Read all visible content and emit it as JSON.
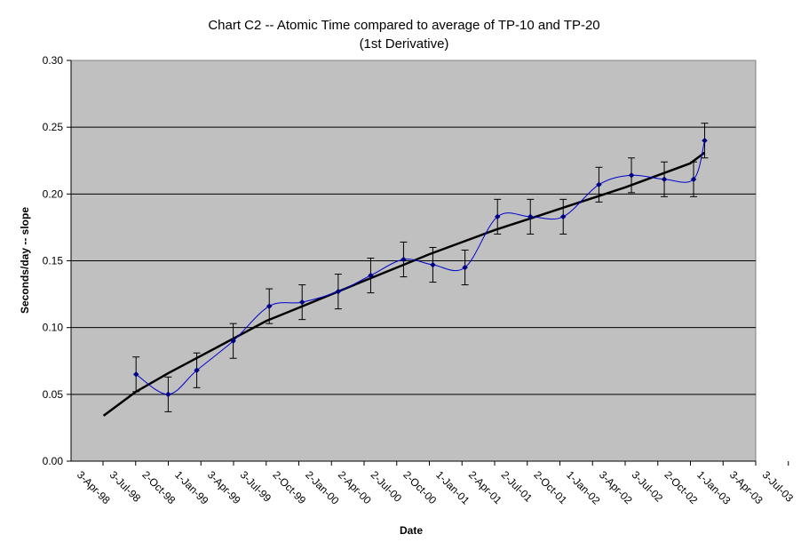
{
  "chart_data": {
    "type": "line",
    "title": "Chart C2 -- Atomic Time compared to average of TP-10 and TP-20",
    "subtitle": "(1st Derivative)",
    "xlabel": "Date",
    "ylabel": "Seconds/day -- slope",
    "ylim": [
      0.0,
      0.3
    ],
    "yticks": [
      "0.00",
      "0.05",
      "0.10",
      "0.15",
      "0.20",
      "0.25",
      "0.30"
    ],
    "xticks": [
      "3-Apr-98",
      "3-Jul-98",
      "2-Oct-98",
      "1-Jan-99",
      "3-Apr-99",
      "3-Jul-99",
      "2-Oct-99",
      "2-Jan-00",
      "2-Apr-00",
      "2-Jul-00",
      "2-Oct-00",
      "1-Jan-01",
      "2-Apr-01",
      "2-Jul-01",
      "2-Oct-01",
      "1-Jan-02",
      "3-Apr-02",
      "3-Jul-02",
      "2-Oct-02",
      "1-Jan-03",
      "3-Apr-03",
      "3-Jul-03"
    ],
    "xlim": [
      "1998-04-03",
      "2003-07-03"
    ],
    "grid": true,
    "legend": "none",
    "colors": {
      "plot_bg": "#c0c0c0",
      "data_line": "#0000cc",
      "marker": "#000080",
      "trend": "#000000",
      "error_bar": "#000000"
    },
    "series": [
      {
        "values": [
          {
            "x": "1998-10-02",
            "y": 0.065,
            "err": 0.013
          },
          {
            "x": "1998-12-31",
            "y": 0.05,
            "err": 0.013
          },
          {
            "x": "1999-03-21",
            "y": 0.068,
            "err": 0.013
          },
          {
            "x": "1999-07-01",
            "y": 0.09,
            "err": 0.013
          },
          {
            "x": "1999-10-10",
            "y": 0.116,
            "err": 0.013
          },
          {
            "x": "2000-01-10",
            "y": 0.119,
            "err": 0.013
          },
          {
            "x": "2000-04-20",
            "y": 0.127,
            "err": 0.013
          },
          {
            "x": "2000-07-20",
            "y": 0.139,
            "err": 0.013
          },
          {
            "x": "2000-10-20",
            "y": 0.151,
            "err": 0.013
          },
          {
            "x": "2001-01-10",
            "y": 0.147,
            "err": 0.013
          },
          {
            "x": "2001-04-10",
            "y": 0.145,
            "err": 0.013
          },
          {
            "x": "2001-07-10",
            "y": 0.183,
            "err": 0.013
          },
          {
            "x": "2001-10-10",
            "y": 0.183,
            "err": 0.013
          },
          {
            "x": "2002-01-10",
            "y": 0.183,
            "err": 0.013
          },
          {
            "x": "2002-04-20",
            "y": 0.207,
            "err": 0.013
          },
          {
            "x": "2002-07-20",
            "y": 0.214,
            "err": 0.013
          },
          {
            "x": "2002-10-20",
            "y": 0.211,
            "err": 0.013
          },
          {
            "x": "2003-01-10",
            "y": 0.211,
            "err": 0.013
          },
          {
            "x": "2003-02-10",
            "y": 0.24,
            "err": 0.013
          }
        ]
      },
      {
        "role": "trendline",
        "values": [
          {
            "x": "1998-07-03",
            "y": 0.034
          },
          {
            "x": "1998-10-02",
            "y": 0.052
          },
          {
            "x": "1999-01-01",
            "y": 0.066
          },
          {
            "x": "1999-04-03",
            "y": 0.079
          },
          {
            "x": "1999-07-03",
            "y": 0.092
          },
          {
            "x": "1999-10-02",
            "y": 0.105
          },
          {
            "x": "2000-01-02",
            "y": 0.115
          },
          {
            "x": "2000-04-02",
            "y": 0.125
          },
          {
            "x": "2000-07-02",
            "y": 0.135
          },
          {
            "x": "2000-10-02",
            "y": 0.145
          },
          {
            "x": "2001-01-01",
            "y": 0.155
          },
          {
            "x": "2001-04-02",
            "y": 0.164
          },
          {
            "x": "2001-07-02",
            "y": 0.173
          },
          {
            "x": "2001-10-02",
            "y": 0.181
          },
          {
            "x": "2002-01-01",
            "y": 0.189
          },
          {
            "x": "2002-04-03",
            "y": 0.197
          },
          {
            "x": "2002-07-03",
            "y": 0.205
          },
          {
            "x": "2002-10-02",
            "y": 0.214
          },
          {
            "x": "2003-01-01",
            "y": 0.223
          },
          {
            "x": "2003-02-10",
            "y": 0.231
          }
        ]
      }
    ]
  }
}
